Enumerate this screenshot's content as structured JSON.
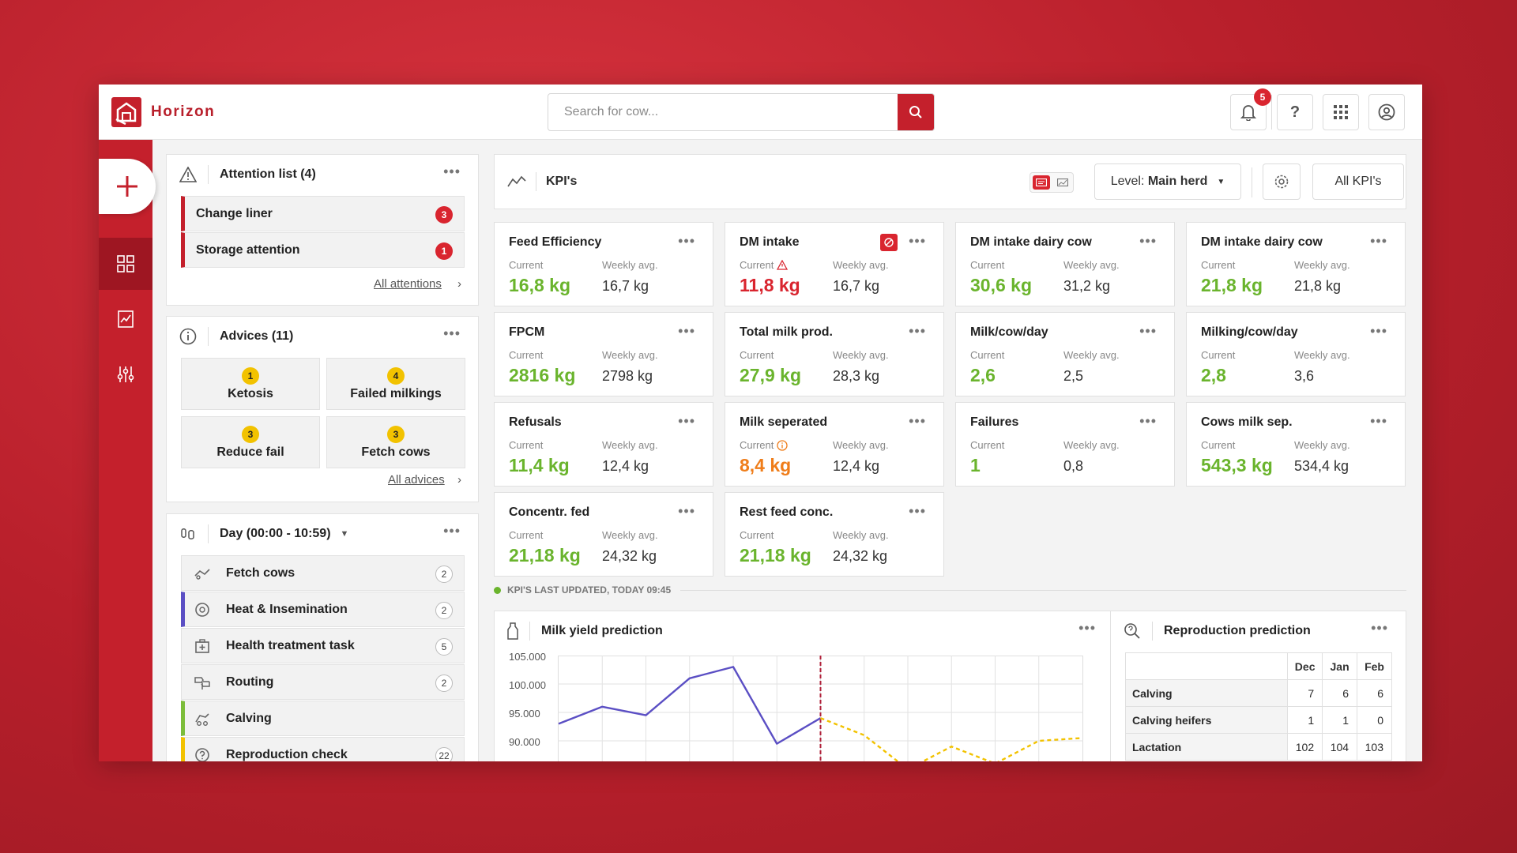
{
  "app": {
    "name": "Horizon"
  },
  "search": {
    "placeholder": "Search for cow..."
  },
  "notifications": {
    "count": "5"
  },
  "help": {
    "label": "?"
  },
  "attention": {
    "title": "Attention list (4)",
    "items": [
      {
        "label": "Change liner",
        "count": "3"
      },
      {
        "label": "Storage attention",
        "count": "1"
      }
    ],
    "link": "All attentions"
  },
  "advices": {
    "title": "Advices (11)",
    "items": [
      {
        "label": "Ketosis",
        "count": "1"
      },
      {
        "label": "Failed milkings",
        "count": "4"
      },
      {
        "label": "Reduce fail",
        "count": "3"
      },
      {
        "label": "Fetch cows",
        "count": "3"
      }
    ],
    "link": "All advices"
  },
  "tasks": {
    "title": "Day (00:00 - 10:59)",
    "items": [
      {
        "label": "Fetch cows",
        "count": "2",
        "accent": ""
      },
      {
        "label": "Heat & Insemination",
        "count": "2",
        "accent": "#5b4fc4"
      },
      {
        "label": "Health treatment task",
        "count": "5",
        "accent": ""
      },
      {
        "label": "Routing",
        "count": "2",
        "accent": ""
      },
      {
        "label": "Calving",
        "count": "",
        "accent": "#7cbd3a"
      },
      {
        "label": "Reproduction check",
        "count": "22",
        "accent": "#f2c200"
      }
    ]
  },
  "kpi": {
    "title": "KPI's",
    "level_prefix": "Level: ",
    "level_value": "Main herd",
    "all_label": "All KPI's",
    "current_label": "Current",
    "weekly_label": "Weekly avg.",
    "updated": "KPI'S LAST UPDATED, TODAY 09:45",
    "cards": [
      {
        "title": "Feed Efficiency",
        "current": "16,8 kg",
        "weekly": "16,7 kg",
        "status": "green"
      },
      {
        "title": "DM intake",
        "current": "11,8 kg",
        "weekly": "16,7 kg",
        "status": "red"
      },
      {
        "title": "DM intake dairy cow",
        "current": "30,6 kg",
        "weekly": "31,2 kg",
        "status": "green"
      },
      {
        "title": "DM intake dairy cow",
        "current": "21,8 kg",
        "weekly": "21,8 kg",
        "status": "green"
      },
      {
        "title": "FPCM",
        "current": "2816 kg",
        "weekly": "2798 kg",
        "status": "green"
      },
      {
        "title": "Total milk prod.",
        "current": "27,9 kg",
        "weekly": "28,3 kg",
        "status": "green"
      },
      {
        "title": "Milk/cow/day",
        "current": "2,6",
        "weekly": "2,5",
        "status": "green"
      },
      {
        "title": "Milking/cow/day",
        "current": "2,8",
        "weekly": "3,6",
        "status": "green"
      },
      {
        "title": "Refusals",
        "current": "11,4 kg",
        "weekly": "12,4 kg",
        "status": "green"
      },
      {
        "title": "Milk seperated",
        "current": "8,4 kg",
        "weekly": "12,4 kg",
        "status": "orange"
      },
      {
        "title": "Failures",
        "current": "1",
        "weekly": "0,8",
        "status": "green"
      },
      {
        "title": "Cows milk sep.",
        "current": "543,3 kg",
        "weekly": "534,4 kg",
        "status": "green"
      },
      {
        "title": "Concentr. fed",
        "current": "21,18 kg",
        "weekly": "24,32 kg",
        "status": "green"
      },
      {
        "title": "Rest feed conc.",
        "current": "21,18 kg",
        "weekly": "24,32 kg",
        "status": "green"
      }
    ]
  },
  "colors": {
    "green": "#6ab42d",
    "red": "#d9252f",
    "orange": "#ef7d1a",
    "brand": "#c4202c"
  },
  "milk": {
    "title": "Milk yield prediction",
    "y_ticks": [
      "105.000",
      "100.000",
      "95.000",
      "90.000"
    ]
  },
  "chart_data": {
    "type": "line",
    "title": "Milk yield prediction",
    "ylim": [
      87500,
      105000
    ],
    "y_ticks": [
      105000,
      100000,
      95000,
      90000
    ],
    "grid": true,
    "today_index": 6,
    "series": [
      {
        "values": [
          93000,
          96000,
          94500,
          101000,
          103000,
          89500,
          94000,
          null,
          null,
          null,
          null,
          null,
          null
        ]
      },
      {
        "values": [
          null,
          null,
          null,
          null,
          null,
          null,
          94000,
          91000,
          85000,
          89000,
          86000,
          90000,
          90500
        ]
      }
    ]
  },
  "repro": {
    "title": "Reproduction prediction",
    "months": [
      "Dec",
      "Jan",
      "Feb"
    ],
    "rows": [
      {
        "label": "Calving",
        "values": [
          "7",
          "6",
          "6"
        ]
      },
      {
        "label": "Calving heifers",
        "values": [
          "1",
          "1",
          "0"
        ]
      },
      {
        "label": "Lactation",
        "values": [
          "102",
          "104",
          "103"
        ]
      }
    ]
  }
}
